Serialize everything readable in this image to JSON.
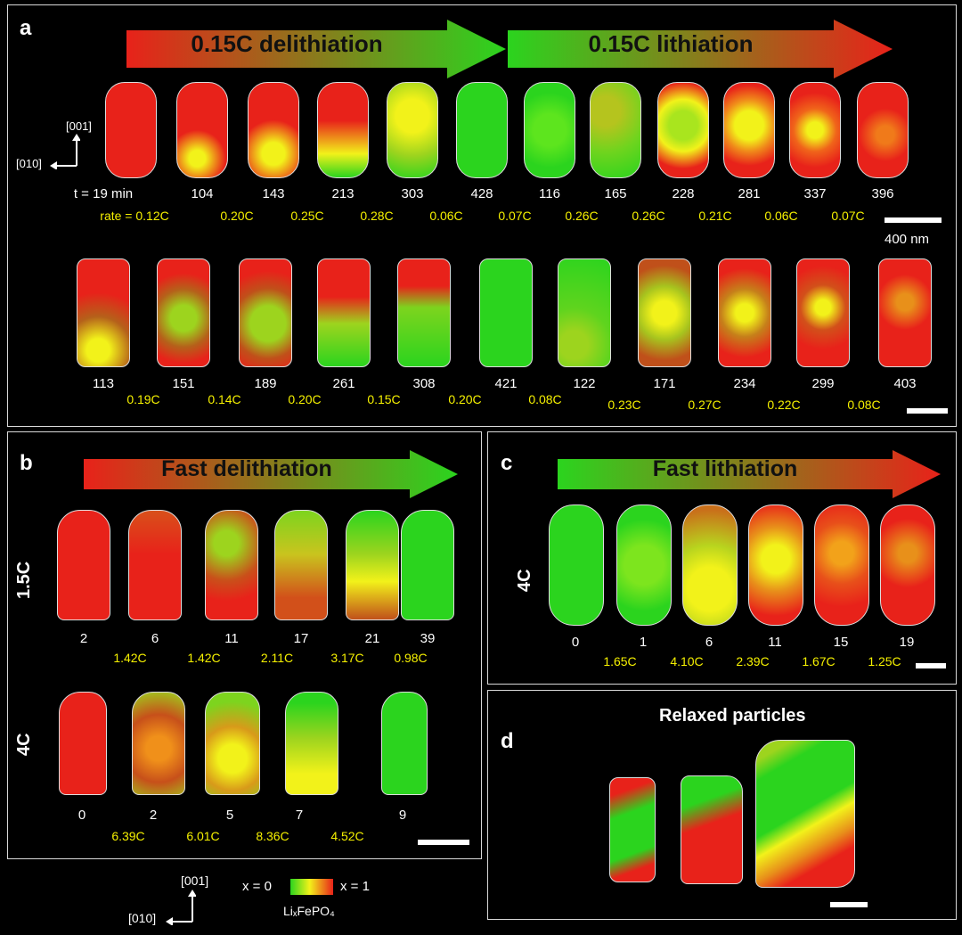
{
  "panel_a": {
    "label": "a",
    "arrow1_text": "0.15C delithiation",
    "arrow2_text": "0.15C lithiation",
    "axis_001": "[001]",
    "axis_010": "[010]",
    "row1_times": [
      "t = 19 min",
      "104",
      "143",
      "213",
      "303",
      "428",
      "116",
      "165",
      "228",
      "281",
      "337",
      "396"
    ],
    "row1_rates": [
      "rate = 0.12C",
      "0.20C",
      "0.25C",
      "0.28C",
      "0.06C",
      "0.07C",
      "0.26C",
      "0.26C",
      "0.21C",
      "0.06C",
      "0.07C"
    ],
    "scale_label": "400 nm",
    "row2_times": [
      "113",
      "151",
      "189",
      "261",
      "308",
      "421",
      "122",
      "171",
      "234",
      "299",
      "403"
    ],
    "row2_rates": [
      "0.19C",
      "0.14C",
      "0.20C",
      "0.15C",
      "0.20C",
      "0.08C",
      "0.23C",
      "0.27C",
      "0.22C",
      "0.08C"
    ]
  },
  "panel_b": {
    "label": "b",
    "arrow_text": "Fast delithiation",
    "row1_label": "1.5C",
    "row1_times": [
      "2",
      "6",
      "11",
      "17",
      "21",
      "39"
    ],
    "row1_rates": [
      "1.42C",
      "1.42C",
      "2.11C",
      "3.17C",
      "0.98C"
    ],
    "row2_label": "4C",
    "row2_times": [
      "0",
      "2",
      "5",
      "7",
      "9"
    ],
    "row2_rates": [
      "6.39C",
      "6.01C",
      "8.36C",
      "4.52C"
    ]
  },
  "panel_c": {
    "label": "c",
    "arrow_text": "Fast lithiation",
    "row_label": "4C",
    "times": [
      "0",
      "1",
      "6",
      "11",
      "15",
      "19"
    ],
    "rates": [
      "1.65C",
      "4.10C",
      "2.39C",
      "1.67C",
      "1.25C"
    ]
  },
  "panel_d": {
    "label": "d",
    "title": "Relaxed particles"
  },
  "legend": {
    "axis_001": "[001]",
    "axis_010": "[010]",
    "x0": "x = 0",
    "x1": "x = 1",
    "formula": "LiₓFePO₄"
  },
  "colors": {
    "red": "#e8221a",
    "green": "#2bd41e",
    "yellow": "#f2f21a",
    "rate_text": "#f5f000"
  }
}
